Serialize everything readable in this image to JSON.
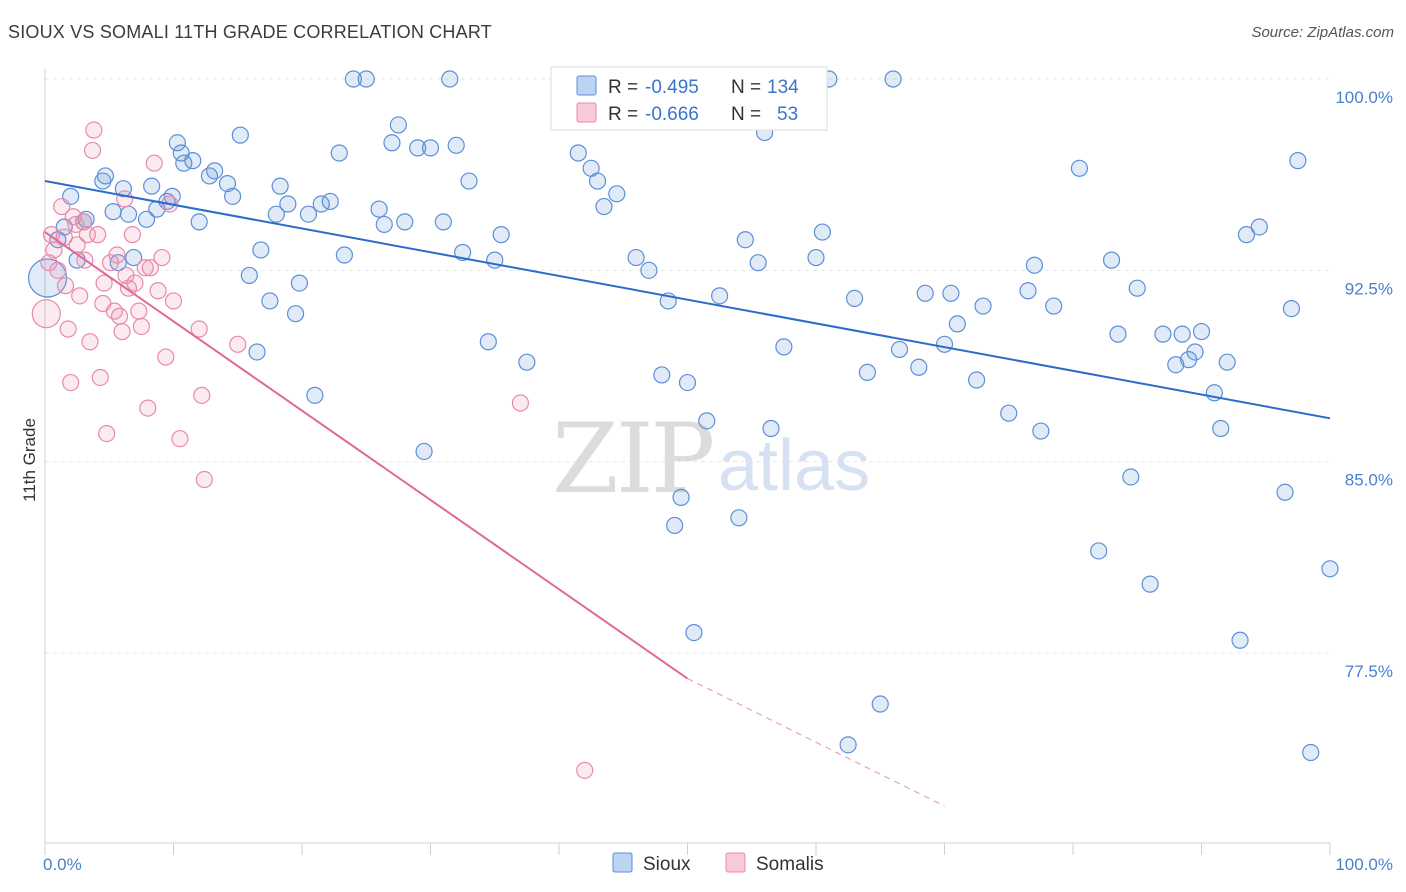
{
  "title": "SIOUX VS SOMALI 11TH GRADE CORRELATION CHART",
  "source": "Source: ZipAtlas.com",
  "watermark": {
    "zip": "ZIP",
    "atlas": "atlas"
  },
  "colors": {
    "sioux": "#5b8fd8",
    "somalis": "#e98aaa",
    "sioux_line": "#2a6cc9",
    "somalis_line": "#e0689a",
    "tick_text": "#4a7fd0"
  },
  "legend": {
    "rows": [
      {
        "r_label": "R = ",
        "r_value": "-0.495",
        "n_label": "N = ",
        "n_value": "134"
      },
      {
        "r_label": "R = ",
        "r_value": "-0.666",
        "n_label": "N = ",
        "n_value": "53"
      }
    ]
  },
  "chart_data": {
    "type": "scatter",
    "title": "SIOUX VS SOMALI 11TH GRADE CORRELATION CHART",
    "xlabel": "",
    "ylabel": "11th Grade",
    "xlim": [
      0,
      100
    ],
    "ylim": [
      71.5,
      101.0
    ],
    "y_ticks": [
      77.5,
      85.0,
      92.5,
      100.0
    ],
    "y_tick_labels": [
      "77.5%",
      "85.0%",
      "92.5%",
      "100.0%"
    ],
    "x_tick_labels": [
      "0.0%",
      "100.0%"
    ],
    "grid": true,
    "legend_position": "top-center",
    "series": [
      {
        "name": "Sioux",
        "color": "#5b8fd8",
        "trend": {
          "x": [
            0,
            100
          ],
          "y": [
            96.0,
            86.7
          ]
        },
        "points": [
          [
            0.2,
            92.2
          ],
          [
            1.0,
            93.7
          ],
          [
            1.5,
            94.2
          ],
          [
            2.0,
            95.4
          ],
          [
            2.5,
            92.9
          ],
          [
            3.0,
            94.4
          ],
          [
            3.2,
            94.5
          ],
          [
            4.5,
            96.0
          ],
          [
            4.7,
            96.2
          ],
          [
            5.3,
            94.8
          ],
          [
            5.7,
            92.8
          ],
          [
            6.1,
            95.7
          ],
          [
            6.5,
            94.7
          ],
          [
            6.9,
            93.0
          ],
          [
            7.9,
            94.5
          ],
          [
            8.3,
            95.8
          ],
          [
            8.7,
            94.9
          ],
          [
            9.5,
            95.2
          ],
          [
            9.9,
            95.4
          ],
          [
            10.3,
            97.5
          ],
          [
            10.6,
            97.1
          ],
          [
            10.8,
            96.7
          ],
          [
            11.5,
            96.8
          ],
          [
            12.0,
            94.4
          ],
          [
            12.8,
            96.2
          ],
          [
            13.2,
            96.4
          ],
          [
            14.2,
            95.9
          ],
          [
            14.6,
            95.4
          ],
          [
            15.2,
            97.8
          ],
          [
            15.9,
            92.3
          ],
          [
            16.5,
            89.3
          ],
          [
            16.8,
            93.3
          ],
          [
            17.5,
            91.3
          ],
          [
            18.0,
            94.7
          ],
          [
            18.3,
            95.8
          ],
          [
            18.9,
            95.1
          ],
          [
            19.5,
            90.8
          ],
          [
            19.8,
            92.0
          ],
          [
            20.5,
            94.7
          ],
          [
            21.0,
            87.6
          ],
          [
            21.5,
            95.1
          ],
          [
            22.2,
            95.2
          ],
          [
            22.9,
            97.1
          ],
          [
            23.3,
            93.1
          ],
          [
            24.0,
            100.0
          ],
          [
            25.0,
            100.0
          ],
          [
            26.0,
            94.9
          ],
          [
            26.4,
            94.3
          ],
          [
            27.0,
            97.5
          ],
          [
            27.5,
            98.2
          ],
          [
            28.0,
            94.4
          ],
          [
            29.0,
            97.3
          ],
          [
            29.5,
            85.4
          ],
          [
            30.0,
            97.3
          ],
          [
            31.0,
            94.4
          ],
          [
            31.5,
            100.0
          ],
          [
            32.0,
            97.4
          ],
          [
            32.5,
            93.2
          ],
          [
            33.0,
            96.0
          ],
          [
            34.5,
            89.7
          ],
          [
            35.0,
            92.9
          ],
          [
            35.5,
            93.9
          ],
          [
            37.5,
            88.9
          ],
          [
            40.0,
            100.0
          ],
          [
            41.5,
            97.1
          ],
          [
            42.5,
            96.5
          ],
          [
            43.0,
            96.0
          ],
          [
            43.5,
            95.0
          ],
          [
            44.5,
            95.5
          ],
          [
            44.5,
            100.0
          ],
          [
            46.0,
            93.0
          ],
          [
            47.0,
            92.5
          ],
          [
            48.0,
            88.4
          ],
          [
            48.5,
            91.3
          ],
          [
            49.0,
            82.5
          ],
          [
            49.5,
            83.6
          ],
          [
            50.0,
            88.1
          ],
          [
            50.5,
            78.3
          ],
          [
            51.5,
            86.6
          ],
          [
            52.5,
            91.5
          ],
          [
            54.0,
            82.8
          ],
          [
            54.5,
            93.7
          ],
          [
            55.5,
            92.8
          ],
          [
            56.0,
            97.9
          ],
          [
            56.5,
            86.3
          ],
          [
            57.5,
            89.5
          ],
          [
            60.0,
            93.0
          ],
          [
            60.5,
            94.0
          ],
          [
            61.0,
            100.0
          ],
          [
            62.5,
            73.9
          ],
          [
            63.0,
            91.4
          ],
          [
            64.0,
            88.5
          ],
          [
            65.0,
            75.5
          ],
          [
            66.0,
            100.0
          ],
          [
            66.5,
            89.4
          ],
          [
            68.0,
            88.7
          ],
          [
            68.5,
            91.6
          ],
          [
            70.0,
            89.6
          ],
          [
            70.5,
            91.6
          ],
          [
            71.0,
            90.4
          ],
          [
            72.5,
            88.2
          ],
          [
            73.0,
            91.1
          ],
          [
            75.0,
            86.9
          ],
          [
            76.5,
            91.7
          ],
          [
            77.0,
            92.7
          ],
          [
            77.5,
            86.2
          ],
          [
            78.5,
            91.1
          ],
          [
            80.5,
            96.5
          ],
          [
            82.0,
            81.5
          ],
          [
            83.0,
            92.9
          ],
          [
            83.5,
            90.0
          ],
          [
            84.5,
            84.4
          ],
          [
            85.0,
            91.8
          ],
          [
            86.0,
            80.2
          ],
          [
            87.0,
            90.0
          ],
          [
            88.0,
            88.8
          ],
          [
            88.5,
            90.0
          ],
          [
            89.0,
            89.0
          ],
          [
            89.5,
            89.3
          ],
          [
            90.0,
            90.1
          ],
          [
            91.0,
            87.7
          ],
          [
            91.5,
            86.3
          ],
          [
            92.0,
            88.9
          ],
          [
            93.0,
            78.0
          ],
          [
            93.5,
            93.9
          ],
          [
            94.5,
            94.2
          ],
          [
            96.5,
            83.8
          ],
          [
            97.0,
            91.0
          ],
          [
            97.5,
            96.8
          ],
          [
            98.5,
            73.6
          ],
          [
            100.0,
            80.8
          ]
        ]
      },
      {
        "name": "Somalis",
        "color": "#e98aaa",
        "trend_solid": {
          "x": [
            0,
            50
          ],
          "y": [
            94.0,
            76.5
          ]
        },
        "trend_dashed": {
          "x": [
            50,
            70
          ],
          "y": [
            76.5,
            71.5
          ]
        },
        "points": [
          [
            0.1,
            90.8
          ],
          [
            0.3,
            92.8
          ],
          [
            0.5,
            93.9
          ],
          [
            0.7,
            93.3
          ],
          [
            1.0,
            92.5
          ],
          [
            1.3,
            95.0
          ],
          [
            1.5,
            93.8
          ],
          [
            1.8,
            90.2
          ],
          [
            2.0,
            88.1
          ],
          [
            2.2,
            94.6
          ],
          [
            2.4,
            94.3
          ],
          [
            2.7,
            91.5
          ],
          [
            3.0,
            94.4
          ],
          [
            3.3,
            93.9
          ],
          [
            3.5,
            89.7
          ],
          [
            3.7,
            97.2
          ],
          [
            3.8,
            98.0
          ],
          [
            4.1,
            93.9
          ],
          [
            4.3,
            88.3
          ],
          [
            4.6,
            92.0
          ],
          [
            4.8,
            86.1
          ],
          [
            5.1,
            92.8
          ],
          [
            5.4,
            90.9
          ],
          [
            5.6,
            93.1
          ],
          [
            5.8,
            90.7
          ],
          [
            6.0,
            90.1
          ],
          [
            6.2,
            95.3
          ],
          [
            6.5,
            91.8
          ],
          [
            6.8,
            93.9
          ],
          [
            7.0,
            92.0
          ],
          [
            7.3,
            90.9
          ],
          [
            7.5,
            90.3
          ],
          [
            7.8,
            92.6
          ],
          [
            8.0,
            87.1
          ],
          [
            8.2,
            92.6
          ],
          [
            8.5,
            96.7
          ],
          [
            8.8,
            91.7
          ],
          [
            9.1,
            93.0
          ],
          [
            9.4,
            89.1
          ],
          [
            9.7,
            95.1
          ],
          [
            10.0,
            91.3
          ],
          [
            10.5,
            85.9
          ],
          [
            12.0,
            90.2
          ],
          [
            12.2,
            87.6
          ],
          [
            12.4,
            84.3
          ],
          [
            15.0,
            89.6
          ],
          [
            37.0,
            87.3
          ],
          [
            42.0,
            72.9
          ],
          [
            2.5,
            93.5
          ],
          [
            4.5,
            91.2
          ],
          [
            6.3,
            92.3
          ],
          [
            3.1,
            92.9
          ],
          [
            1.6,
            91.9
          ]
        ]
      }
    ]
  },
  "bottom_legend": [
    "Sioux",
    "Somalis"
  ]
}
